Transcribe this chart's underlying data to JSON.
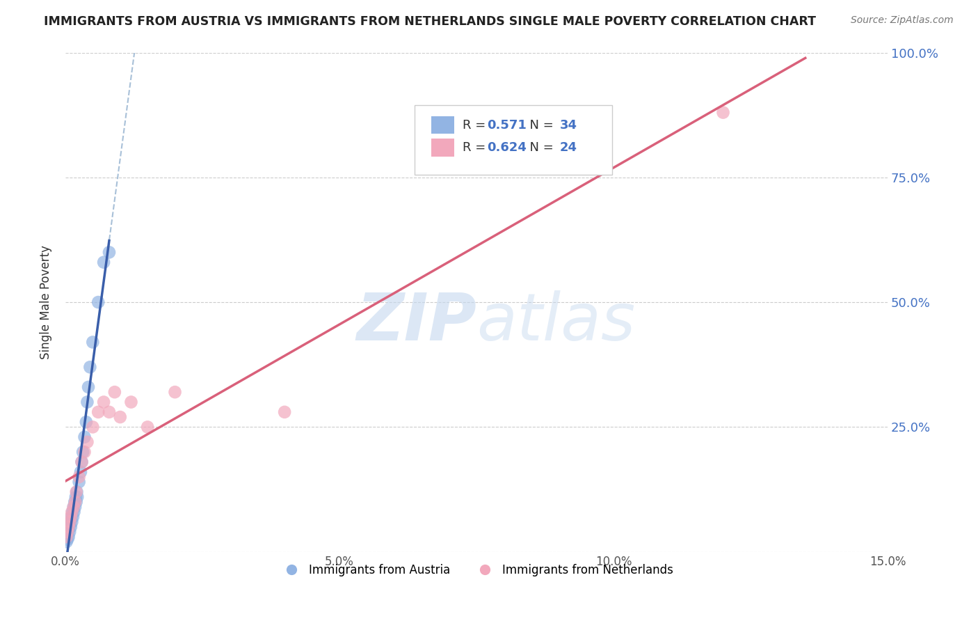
{
  "title": "IMMIGRANTS FROM AUSTRIA VS IMMIGRANTS FROM NETHERLANDS SINGLE MALE POVERTY CORRELATION CHART",
  "source": "Source: ZipAtlas.com",
  "ylabel": "Single Male Poverty",
  "legend_label1": "Immigrants from Austria",
  "legend_label2": "Immigrants from Netherlands",
  "r1": "0.571",
  "n1": "34",
  "r2": "0.624",
  "n2": "24",
  "color_austria": "#92b4e3",
  "color_netherlands": "#f2a8bc",
  "color_line_austria": "#3a5eaa",
  "color_line_netherlands": "#d9607a",
  "color_dashed": "#a8c0d8",
  "xlim": [
    0.0,
    0.15
  ],
  "ylim": [
    0.0,
    1.0
  ],
  "xticks": [
    0.0,
    0.05,
    0.1,
    0.15
  ],
  "xtick_labels": [
    "0.0%",
    "5.0%",
    "10.0%",
    "15.0%"
  ],
  "yticks_right": [
    0.25,
    0.5,
    0.75,
    1.0
  ],
  "ytick_labels_right": [
    "25.0%",
    "50.0%",
    "75.0%",
    "100.0%"
  ],
  "austria_x": [
    0.0002,
    0.0003,
    0.0004,
    0.0005,
    0.0006,
    0.0007,
    0.0008,
    0.0009,
    0.001,
    0.0011,
    0.0012,
    0.0013,
    0.0014,
    0.0015,
    0.0016,
    0.0017,
    0.0018,
    0.0019,
    0.002,
    0.0021,
    0.0022,
    0.0025,
    0.0028,
    0.003,
    0.0032,
    0.0035,
    0.0038,
    0.004,
    0.0042,
    0.0045,
    0.005,
    0.006,
    0.007,
    0.008
  ],
  "austria_y": [
    0.02,
    0.03,
    0.025,
    0.04,
    0.03,
    0.05,
    0.04,
    0.06,
    0.05,
    0.07,
    0.06,
    0.08,
    0.07,
    0.09,
    0.08,
    0.1,
    0.09,
    0.11,
    0.1,
    0.12,
    0.11,
    0.14,
    0.16,
    0.18,
    0.2,
    0.23,
    0.26,
    0.3,
    0.33,
    0.37,
    0.42,
    0.5,
    0.58,
    0.6
  ],
  "netherlands_x": [
    0.0002,
    0.0004,
    0.0006,
    0.0008,
    0.001,
    0.0012,
    0.0015,
    0.0018,
    0.002,
    0.0025,
    0.003,
    0.0035,
    0.004,
    0.005,
    0.006,
    0.007,
    0.008,
    0.009,
    0.01,
    0.012,
    0.015,
    0.02,
    0.04,
    0.12
  ],
  "netherlands_y": [
    0.03,
    0.04,
    0.05,
    0.06,
    0.07,
    0.08,
    0.09,
    0.1,
    0.12,
    0.15,
    0.18,
    0.2,
    0.22,
    0.25,
    0.28,
    0.3,
    0.28,
    0.32,
    0.27,
    0.3,
    0.25,
    0.32,
    0.28,
    0.88
  ],
  "watermark_zip": "ZIP",
  "watermark_atlas": "atlas",
  "background_color": "#ffffff",
  "grid_color": "#cccccc"
}
